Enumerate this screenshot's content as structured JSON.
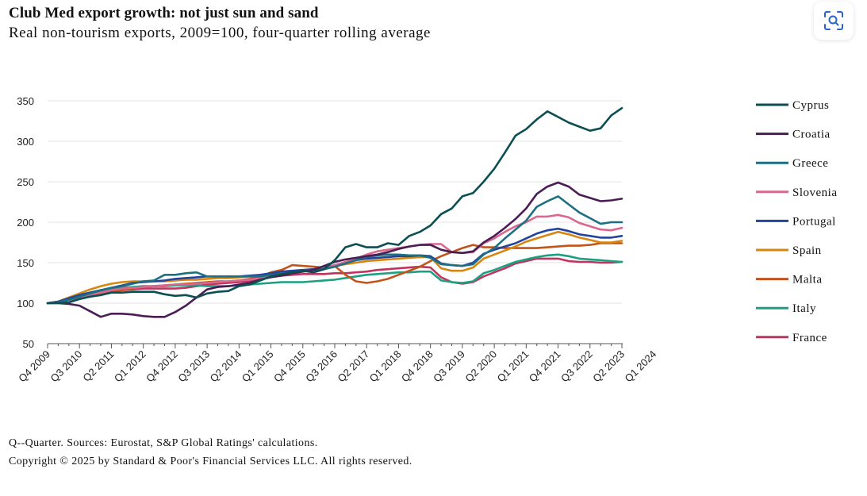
{
  "header": {
    "title": "Club Med export growth: not just sun and sand",
    "subtitle": "Real non-tourism exports, 2009=100, four-quarter rolling average"
  },
  "toolbar": {
    "zoom_icon": "focus-search-icon"
  },
  "footer": {
    "note": "Q--Quarter. Sources: Eurostat, S&P Global Ratings' calculations.",
    "copyright": "Copyright © 2025 by Standard & Poor's Financial Services LLC. All rights reserved."
  },
  "chart_data": {
    "type": "line",
    "title": "Club Med export growth: not just sun and sand",
    "subtitle": "Real non-tourism exports, 2009=100, four-quarter rolling average",
    "ylim": [
      50,
      350
    ],
    "yticks": [
      50,
      100,
      150,
      200,
      250,
      300,
      350
    ],
    "xticks": [
      "Q4 2009",
      "Q3 2010",
      "Q2 2011",
      "Q1 2012",
      "Q4 2012",
      "Q3 2013",
      "Q2 2014",
      "Q1 2015",
      "Q4 2015",
      "Q3 2016",
      "Q2 2017",
      "Q1 2018",
      "Q4 2018",
      "Q3 2019",
      "Q2 2020",
      "Q1 2021",
      "Q4 2021",
      "Q3 2022",
      "Q2 2023",
      "Q1 2024"
    ],
    "x_start": "Q4 2009",
    "x_end": "Q4 2024",
    "grid": true,
    "legend_position": "right",
    "series": [
      {
        "name": "Cyprus",
        "color": "#0b4f52",
        "values": [
          100,
          100,
          101,
          105,
          108,
          110,
          113,
          113,
          114,
          114,
          114,
          111,
          109,
          110,
          107,
          112,
          114,
          115,
          121,
          123,
          128,
          133,
          136,
          138,
          140,
          138,
          142,
          153,
          169,
          173,
          169,
          169,
          174,
          172,
          183,
          188,
          196,
          210,
          217,
          232,
          236,
          250,
          266,
          286,
          307,
          315,
          327,
          337,
          330,
          323,
          318,
          313,
          316,
          332,
          341
        ]
      },
      {
        "name": "Croatia",
        "color": "#4a1e55",
        "values": [
          100,
          100,
          99,
          97,
          90,
          83,
          87,
          87,
          86,
          84,
          83,
          83,
          89,
          97,
          107,
          117,
          120,
          121,
          123,
          125,
          129,
          132,
          134,
          137,
          139,
          141,
          146,
          151,
          154,
          156,
          158,
          160,
          163,
          167,
          170,
          172,
          172,
          166,
          163,
          162,
          164,
          175,
          183,
          193,
          204,
          217,
          235,
          244,
          249,
          244,
          234,
          230,
          226,
          227,
          229
        ]
      },
      {
        "name": "Greece",
        "color": "#1d6f82",
        "values": [
          100,
          101,
          104,
          108,
          112,
          116,
          119,
          121,
          124,
          127,
          128,
          135,
          135,
          137,
          138,
          133,
          133,
          133,
          133,
          133,
          133,
          135,
          136,
          137,
          140,
          141,
          142,
          145,
          149,
          153,
          157,
          159,
          160,
          160,
          159,
          159,
          156,
          148,
          147,
          146,
          148,
          160,
          168,
          180,
          191,
          202,
          219,
          226,
          232,
          222,
          212,
          205,
          198,
          200,
          200
        ]
      },
      {
        "name": "Slovenia",
        "color": "#d9688f",
        "values": [
          100,
          101,
          104,
          107,
          110,
          113,
          116,
          118,
          119,
          120,
          121,
          122,
          123,
          123,
          124,
          125,
          126,
          127,
          128,
          129,
          131,
          133,
          135,
          137,
          139,
          141,
          143,
          147,
          151,
          155,
          160,
          164,
          166,
          168,
          170,
          172,
          173,
          173,
          163,
          162,
          163,
          174,
          180,
          188,
          195,
          200,
          207,
          207,
          209,
          206,
          199,
          195,
          191,
          190,
          193
        ]
      },
      {
        "name": "Portugal",
        "color": "#23449c",
        "values": [
          100,
          102,
          106,
          110,
          113,
          116,
          119,
          122,
          125,
          126,
          127,
          128,
          130,
          131,
          132,
          133,
          133,
          133,
          133,
          134,
          135,
          137,
          139,
          140,
          141,
          142,
          144,
          147,
          150,
          153,
          155,
          156,
          157,
          158,
          158,
          159,
          158,
          149,
          147,
          146,
          150,
          161,
          166,
          170,
          174,
          180,
          186,
          190,
          192,
          189,
          185,
          183,
          181,
          181,
          183
        ]
      },
      {
        "name": "Spain",
        "color": "#d7860f",
        "values": [
          100,
          102,
          107,
          112,
          117,
          121,
          124,
          126,
          127,
          127,
          127,
          127,
          128,
          129,
          129,
          130,
          131,
          131,
          132,
          133,
          134,
          136,
          137,
          138,
          139,
          141,
          143,
          146,
          148,
          150,
          152,
          153,
          154,
          155,
          156,
          157,
          157,
          143,
          140,
          140,
          144,
          155,
          160,
          165,
          170,
          176,
          180,
          184,
          188,
          185,
          181,
          178,
          175,
          175,
          177
        ]
      },
      {
        "name": "Malta",
        "color": "#c2531c",
        "values": [
          100,
          101,
          104,
          107,
          110,
          112,
          114,
          116,
          118,
          120,
          121,
          122,
          123,
          124,
          125,
          126,
          127,
          127,
          128,
          130,
          133,
          138,
          141,
          147,
          146,
          145,
          144,
          146,
          135,
          127,
          125,
          127,
          130,
          135,
          140,
          145,
          152,
          158,
          163,
          168,
          172,
          169,
          169,
          168,
          168,
          168,
          168,
          169,
          170,
          171,
          171,
          172,
          174,
          174,
          174
        ]
      },
      {
        "name": "Italy",
        "color": "#1ba082",
        "values": [
          100,
          102,
          106,
          110,
          113,
          116,
          118,
          119,
          120,
          121,
          121,
          121,
          122,
          122,
          122,
          121,
          121,
          121,
          122,
          123,
          124,
          125,
          126,
          126,
          126,
          127,
          128,
          129,
          131,
          133,
          135,
          136,
          137,
          138,
          138,
          139,
          139,
          128,
          126,
          125,
          127,
          137,
          141,
          146,
          151,
          154,
          157,
          159,
          160,
          158,
          155,
          154,
          153,
          152,
          151
        ]
      },
      {
        "name": "France",
        "color": "#c1345f",
        "values": [
          100,
          101,
          104,
          108,
          111,
          114,
          115,
          116,
          117,
          118,
          118,
          118,
          118,
          119,
          121,
          123,
          124,
          125,
          126,
          127,
          130,
          133,
          134,
          135,
          136,
          136,
          136,
          137,
          137,
          138,
          139,
          141,
          142,
          143,
          144,
          145,
          144,
          132,
          126,
          124,
          126,
          133,
          138,
          143,
          149,
          152,
          155,
          155,
          155,
          152,
          151,
          151,
          150,
          150,
          151
        ]
      }
    ]
  }
}
